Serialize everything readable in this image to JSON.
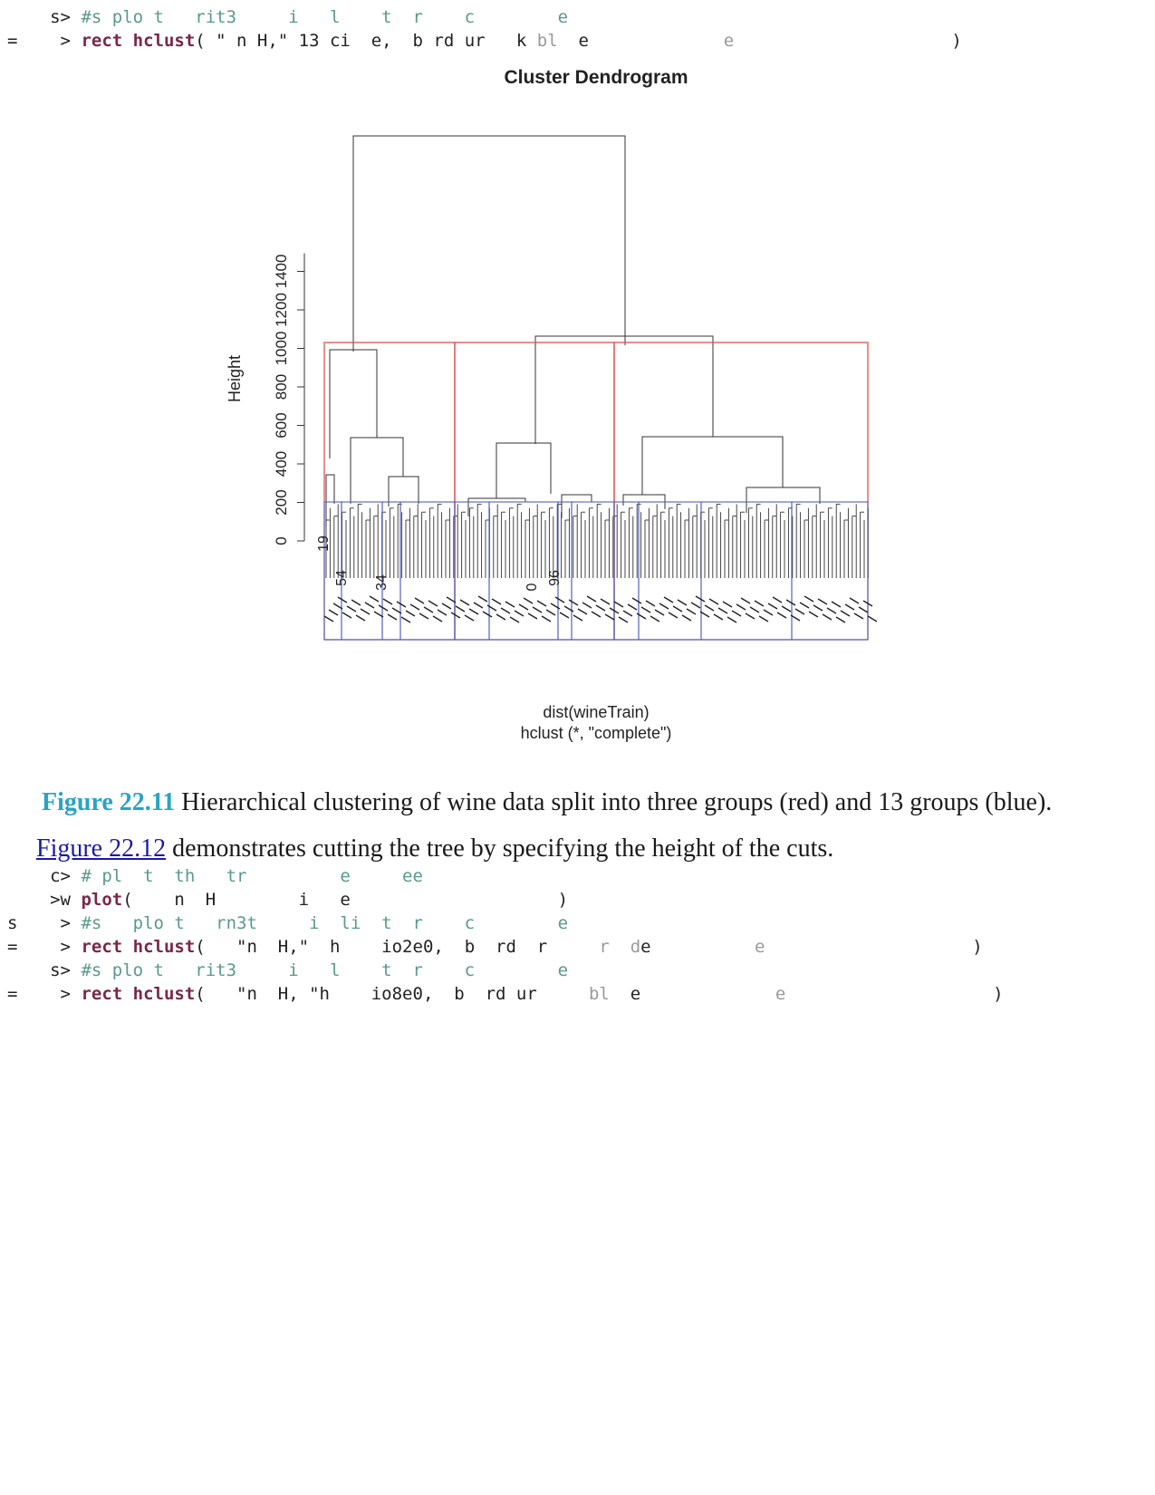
{
  "code_block_1": [
    {
      "gutter": "",
      "prompt": "s>",
      "parts": [
        {
          "cls": "cmt",
          "t": " #s plo t   rit3     i   l    t  r    c        e"
        }
      ]
    },
    {
      "gutter": "=",
      "prompt": ">",
      "parts": [
        {
          "cls": "kw",
          "t": " rect hclust"
        },
        {
          "cls": "plain",
          "t": "( \" n H,\" 13 ci  e,  b rd ur   k "
        },
        {
          "cls": "gray",
          "t": "bl"
        },
        {
          "cls": "plain",
          "t": "  e"
        },
        {
          "cls": "gray",
          "t": "             e"
        },
        {
          "cls": "plain",
          "t": "                     )"
        }
      ]
    }
  ],
  "figure": {
    "title": "Cluster Dendrogram",
    "ylabel": "Height",
    "yticks": [
      "0",
      "200",
      "400",
      "600",
      "800",
      "1000",
      "1200",
      "1400"
    ],
    "xlabel_1": "dist(wineTrain)",
    "xlabel_2": "hclust (*, \"complete\")",
    "leaf_labels": [
      "19",
      "54",
      "34",
      "0",
      "96"
    ]
  },
  "caption": {
    "label": "Figure 22.11",
    "text": " Hierarchical clustering of wine data split into three groups (red) and 13 groups (blue)."
  },
  "paragraph": {
    "link": "Figure 22.12",
    "text": " demonstrates cutting the tree by specifying the height of the cuts."
  },
  "code_block_2": [
    {
      "gutter": "",
      "prompt": "c>",
      "parts": [
        {
          "cls": "cmt",
          "t": " # pl  t  th   tr         e     ee"
        }
      ]
    },
    {
      "gutter": "",
      "prompt": ">w",
      "parts": [
        {
          "cls": "kw",
          "t": " plot"
        },
        {
          "cls": "plain",
          "t": "(    n  H        i   e                    )"
        }
      ]
    },
    {
      "gutter": "s",
      "prompt": ">",
      "parts": [
        {
          "cls": "cmt",
          "t": " #s   plo t   rn3t     i  li  t  r    c        e"
        }
      ]
    },
    {
      "gutter": "=",
      "prompt": ">",
      "parts": [
        {
          "cls": "kw",
          "t": " rect hclust"
        },
        {
          "cls": "plain",
          "t": "(   \"n  H,\"  h    io2e0,  b  rd  r     "
        },
        {
          "cls": "gray",
          "t": "r  d"
        },
        {
          "cls": "plain",
          "t": "e"
        },
        {
          "cls": "gray",
          "t": "          e"
        },
        {
          "cls": "plain",
          "t": "                    )"
        }
      ]
    },
    {
      "gutter": "",
      "prompt": "s>",
      "parts": [
        {
          "cls": "cmt",
          "t": " #s plo t   rit3     i   l    t  r    c        e"
        }
      ]
    },
    {
      "gutter": "=",
      "prompt": ">",
      "parts": [
        {
          "cls": "kw",
          "t": " rect hclust"
        },
        {
          "cls": "plain",
          "t": "(   \"n  H, \"h    io8e0,  b  rd ur     "
        },
        {
          "cls": "gray",
          "t": "bl"
        },
        {
          "cls": "plain",
          "t": "  e"
        },
        {
          "cls": "gray",
          "t": "             e"
        },
        {
          "cls": "plain",
          "t": "                    )"
        }
      ]
    }
  ],
  "colors": {
    "red_cut": "#e05050",
    "blue_cut": "#5060c0",
    "tree": "#333333"
  }
}
